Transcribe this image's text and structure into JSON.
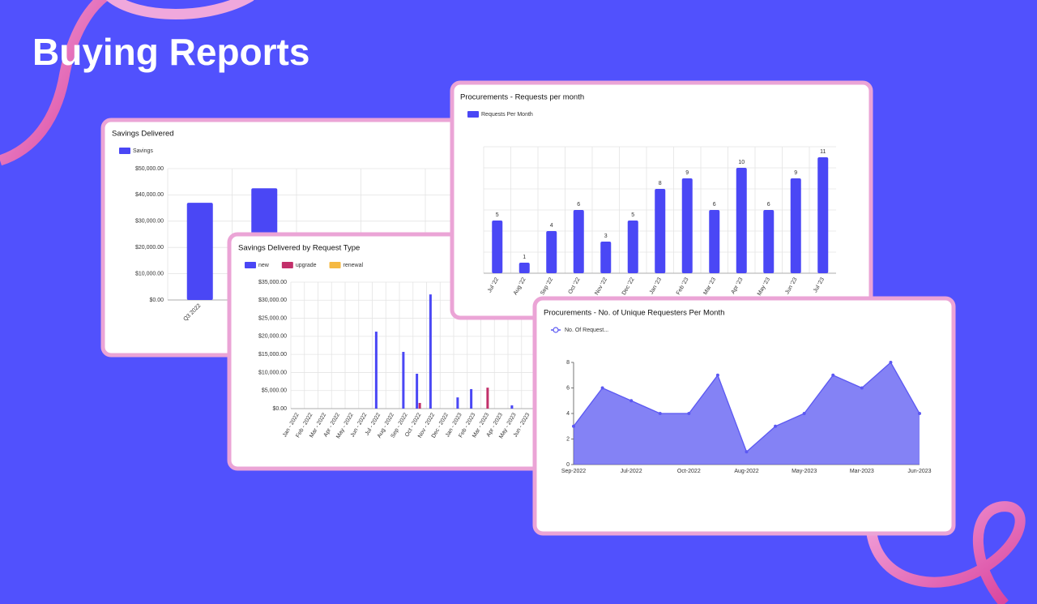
{
  "page_title": "Buying Reports",
  "chart_data": [
    {
      "type": "bar",
      "title": "Savings Delivered",
      "categories": [
        "Q3 2022",
        null
      ],
      "series": [
        {
          "name": "Savings",
          "color": "#4a47f5",
          "values": [
            37000,
            42500
          ]
        }
      ],
      "ylim": [
        0,
        50000
      ],
      "yticks": [
        {
          "value": 0,
          "label": "$0.00"
        },
        {
          "value": 10000,
          "label": "$10,000.00"
        },
        {
          "value": 20000,
          "label": "$20,000.00"
        },
        {
          "value": 30000,
          "label": "$30,000.00"
        },
        {
          "value": 40000,
          "label": "$40,000.00"
        },
        {
          "value": 50000,
          "label": "$50,000.00"
        }
      ],
      "grid": true
    },
    {
      "type": "bar",
      "title": "Savings Delivered by Request Type",
      "categories": [
        "Jan - 2022",
        "Feb - 2022",
        "Mar - 2022",
        "Apr - 2022",
        "May - 2022",
        "Jun - 2022",
        "Jul - 2022",
        "Aug - 2022",
        "Sep - 2022",
        "Oct - 2022",
        "Nov - 2022",
        "Dec - 2022",
        "Jan - 2023",
        "Feb - 2023",
        "Mar - 2023",
        "Apr - 2023",
        "May - 2023",
        "Jun - 2023"
      ],
      "series": [
        {
          "name": "new",
          "color": "#4a47f5",
          "values": [
            0,
            0,
            0,
            0,
            0,
            0,
            21300,
            0,
            15700,
            9650,
            31600,
            0,
            3100,
            5400,
            0,
            0,
            900,
            0
          ]
        },
        {
          "name": "upgrade",
          "color": "#c2306a",
          "values": [
            0,
            0,
            0,
            0,
            0,
            0,
            0,
            0,
            0,
            1570,
            0,
            0,
            0,
            0,
            5800,
            0,
            0,
            0
          ]
        },
        {
          "name": "renewal",
          "color": "#f5b942",
          "values": [
            0,
            0,
            0,
            0,
            0,
            0,
            0,
            0,
            0,
            0,
            0,
            0,
            0,
            0,
            0,
            0,
            0,
            0
          ]
        }
      ],
      "ylim": [
        0,
        35000
      ],
      "yticks": [
        {
          "value": 0,
          "label": "$0.00"
        },
        {
          "value": 5000,
          "label": "$5,000.00"
        },
        {
          "value": 10000,
          "label": "$10,000.00"
        },
        {
          "value": 15000,
          "label": "$15,000.00"
        },
        {
          "value": 20000,
          "label": "$20,000.00"
        },
        {
          "value": 25000,
          "label": "$25,000.00"
        },
        {
          "value": 30000,
          "label": "$30,000.00"
        },
        {
          "value": 35000,
          "label": "$35,000.00"
        }
      ],
      "grid": true
    },
    {
      "type": "bar",
      "title": "Procurements - Requests per month",
      "categories": [
        "Jul '22",
        "Aug '22",
        "Sep '22",
        "Oct '22",
        "Nov '22",
        "Dec '22",
        "Jan '23",
        "Feb '23",
        "Mar '23",
        "Apr '23",
        "May '23",
        "Jun '23",
        "Jul '23"
      ],
      "series": [
        {
          "name": "Requests Per Month",
          "color": "#4a47f5",
          "values": [
            5,
            1,
            4,
            6,
            3,
            5,
            8,
            9,
            6,
            10,
            6,
            9,
            11
          ]
        }
      ],
      "ylim": [
        0,
        12
      ],
      "yticks": [
        0,
        2,
        4,
        6,
        8,
        10,
        12
      ],
      "tick_labels": false,
      "grid": true,
      "data_labels": true
    },
    {
      "type": "area",
      "title": "Procurements - No. of Unique Requesters Per Month",
      "categories": [
        "Sep-2022",
        null,
        "Jul-2022",
        null,
        "Oct-2022",
        null,
        "Aug-2022",
        null,
        "May-2023",
        null,
        "Mar-2023",
        null,
        "Jun-2023"
      ],
      "series": [
        {
          "name": "No. Of Request...",
          "color": "#5b58f2",
          "values": [
            3,
            6,
            5,
            4,
            4,
            7,
            1,
            3,
            4,
            7,
            6,
            8,
            4
          ]
        }
      ],
      "ylim": [
        0,
        8
      ],
      "yticks": [
        0,
        2,
        4,
        6,
        8
      ],
      "grid": false
    }
  ]
}
